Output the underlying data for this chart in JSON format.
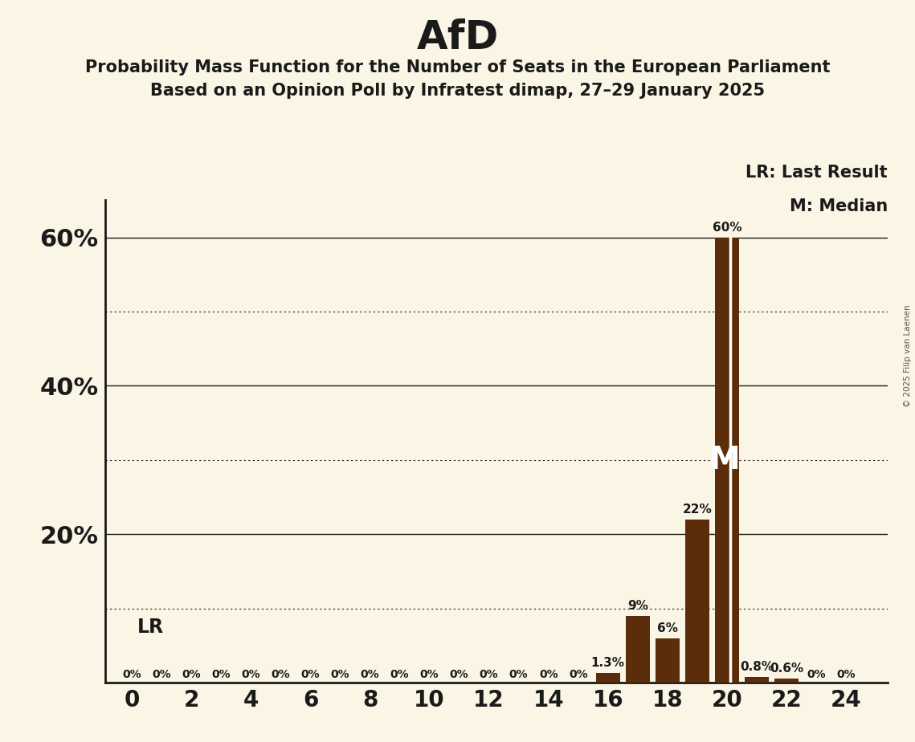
{
  "title": "AfD",
  "subtitle1": "Probability Mass Function for the Number of Seats in the European Parliament",
  "subtitle2": "Based on an Opinion Poll by Infratest dimap, 27–29 January 2025",
  "copyright": "© 2025 Filip van Laenen",
  "bar_color": "#5C2D0A",
  "lr_line_color": "#ffffff",
  "background_color": "#FAF5E4",
  "text_color": "#1a1a1a",
  "seats": [
    0,
    1,
    2,
    3,
    4,
    5,
    6,
    7,
    8,
    9,
    10,
    11,
    12,
    13,
    14,
    15,
    16,
    17,
    18,
    19,
    20,
    21,
    22,
    23,
    24
  ],
  "probabilities": [
    0,
    0,
    0,
    0,
    0,
    0,
    0,
    0,
    0,
    0,
    0,
    0,
    0,
    0,
    0,
    0,
    1.3,
    9,
    6,
    22,
    60,
    0.8,
    0.6,
    0,
    0
  ],
  "prob_labels": [
    "0%",
    "0%",
    "0%",
    "0%",
    "0%",
    "0%",
    "0%",
    "0%",
    "0%",
    "0%",
    "0%",
    "0%",
    "0%",
    "0%",
    "0%",
    "0%",
    "1.3%",
    "9%",
    "6%",
    "22%",
    "60%",
    "0.8%",
    "0.6%",
    "0%",
    "0%"
  ],
  "last_result": 20,
  "median": 20,
  "ylim_max": 65,
  "solid_grid": [
    20,
    40,
    60
  ],
  "dotted_grid": [
    10,
    30,
    50
  ],
  "ytick_positions": [
    20,
    40,
    60
  ],
  "ytick_labels": [
    "20%",
    "40%",
    "60%"
  ],
  "xtick_positions": [
    0,
    2,
    4,
    6,
    8,
    10,
    12,
    14,
    16,
    18,
    20,
    22,
    24
  ],
  "bar_width": 0.8,
  "title_fontsize": 36,
  "subtitle_fontsize": 15,
  "ytick_fontsize": 22,
  "xtick_fontsize": 20,
  "bar_label_fontsize": 11,
  "legend_fontsize": 15,
  "lr_label": "LR: Last Result",
  "m_label": "M: Median",
  "lr_annotation": "LR",
  "m_annotation": "M"
}
